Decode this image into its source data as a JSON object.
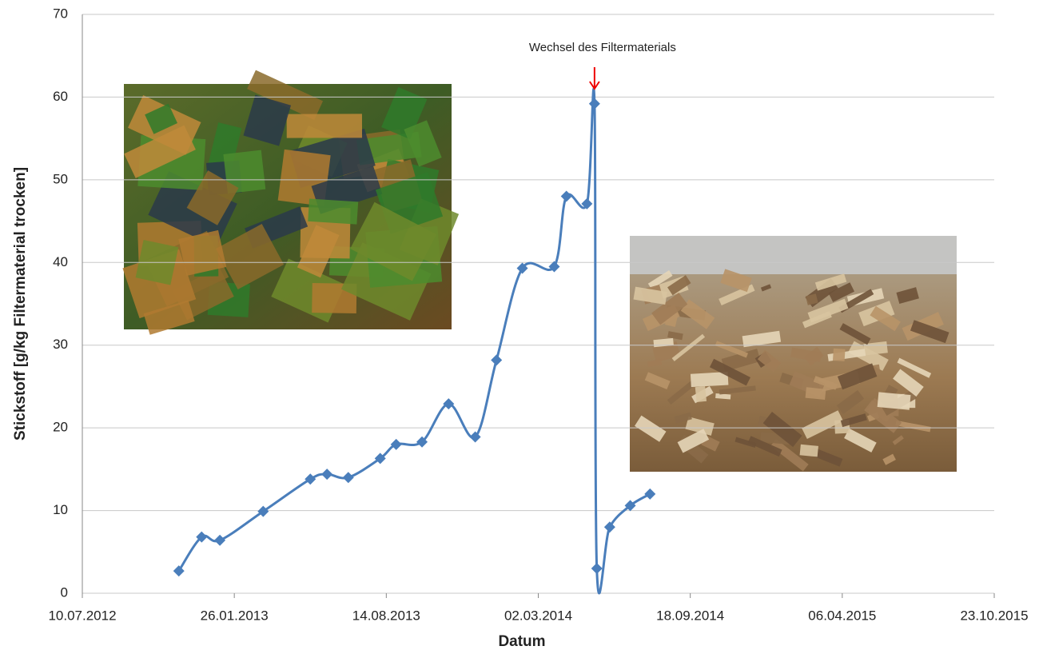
{
  "chart_data": {
    "type": "line",
    "y_label": "Stickstoff [g/kg Filtermaterial trocken]",
    "x_label": "Datum",
    "annotation": "Wechsel des Filtermaterials",
    "x": [
      "14.11.2012",
      "14.12.2012",
      "07.01.2013",
      "05.03.2013",
      "06.05.2013",
      "28.05.2013",
      "25.06.2013",
      "06.08.2013",
      "27.08.2013",
      "30.09.2013",
      "04.11.2013",
      "09.12.2013",
      "06.01.2014",
      "09.02.2014",
      "23.03.2014",
      "08.04.2014",
      "05.05.2014",
      "15.05.2014",
      "18.05.2014",
      "04.06.2014",
      "01.07.2014",
      "27.07.2014"
    ],
    "series": [
      {
        "color": "#4a7ebb",
        "values": [
          2.7,
          6.8,
          6.4,
          9.9,
          13.8,
          14.4,
          14.0,
          16.3,
          18.0,
          18.3,
          22.9,
          18.9,
          28.2,
          39.3,
          39.5,
          48.0,
          47.1,
          59.2,
          3.0,
          8.0,
          10.6,
          12.0
        ]
      }
    ],
    "xlim": [
      "10.07.2012",
      "23.10.2015"
    ],
    "xticks": [
      "10.07.2012",
      "26.01.2013",
      "14.08.2013",
      "02.03.2014",
      "18.09.2014",
      "06.04.2015",
      "23.10.2015"
    ],
    "ylim": [
      0,
      70
    ],
    "yticks": [
      0,
      10,
      20,
      30,
      40,
      50,
      60,
      70
    ],
    "grid": true
  }
}
